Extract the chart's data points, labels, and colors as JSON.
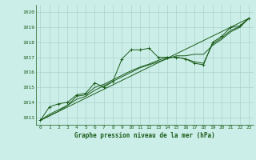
{
  "title": "Graphe pression niveau de la mer (hPa)",
  "bg_color": "#cceee8",
  "grid_color": "#aad4cc",
  "line_color": "#1a5c1a",
  "xlim": [
    -0.5,
    23.5
  ],
  "ylim": [
    1012.5,
    1020.5
  ],
  "yticks": [
    1013,
    1014,
    1015,
    1016,
    1017,
    1018,
    1019,
    1020
  ],
  "xticks": [
    0,
    1,
    2,
    3,
    4,
    5,
    6,
    7,
    8,
    9,
    10,
    11,
    12,
    13,
    14,
    15,
    16,
    17,
    18,
    19,
    20,
    21,
    22,
    23
  ],
  "series1_main": {
    "x": [
      0,
      1,
      2,
      3,
      4,
      5,
      6,
      7,
      8,
      9,
      10,
      11,
      12,
      13,
      14,
      15,
      16,
      17,
      18,
      19,
      20,
      21,
      22,
      23
    ],
    "y": [
      1012.8,
      1013.7,
      1013.9,
      1014.0,
      1014.5,
      1014.6,
      1015.3,
      1015.0,
      1015.4,
      1016.9,
      1017.5,
      1017.5,
      1017.6,
      1017.0,
      1017.0,
      1017.0,
      1016.9,
      1016.6,
      1016.5,
      1018.0,
      1018.4,
      1019.0,
      1019.1,
      1019.6
    ]
  },
  "series2_smooth": {
    "x": [
      0,
      1,
      2,
      3,
      4,
      5,
      6,
      7,
      8,
      9,
      10,
      11,
      12,
      13,
      14,
      15,
      16,
      17,
      18,
      19,
      20,
      21,
      22,
      23
    ],
    "y": [
      1012.8,
      1013.2,
      1013.5,
      1013.8,
      1014.2,
      1014.4,
      1014.8,
      1015.1,
      1015.4,
      1015.7,
      1016.0,
      1016.3,
      1016.5,
      1016.7,
      1016.9,
      1017.1,
      1017.1,
      1017.2,
      1017.2,
      1017.8,
      1018.2,
      1018.7,
      1019.0,
      1019.6
    ]
  },
  "series3_linear": {
    "x": [
      0,
      23
    ],
    "y": [
      1012.8,
      1019.6
    ]
  },
  "series4_close": {
    "x": [
      0,
      1,
      2,
      3,
      4,
      5,
      6,
      7,
      8,
      9,
      10,
      11,
      12,
      13,
      14,
      15,
      16,
      17,
      18,
      19,
      20,
      21,
      22,
      23
    ],
    "y": [
      1012.8,
      1013.1,
      1013.4,
      1013.8,
      1014.4,
      1014.5,
      1015.0,
      1015.2,
      1015.5,
      1015.8,
      1016.1,
      1016.35,
      1016.55,
      1016.8,
      1017.0,
      1017.0,
      1016.9,
      1016.7,
      1016.6,
      1017.9,
      1018.3,
      1018.8,
      1019.05,
      1019.6
    ]
  }
}
